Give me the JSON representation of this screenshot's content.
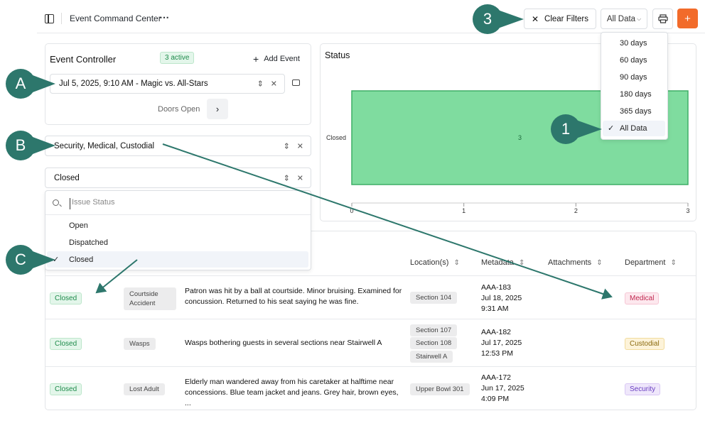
{
  "topbar": {
    "title": "Event Command Center",
    "more": "⋯",
    "clear_filters": "Clear Filters",
    "range_selected": "All Data",
    "add": "+"
  },
  "range_menu": {
    "options": [
      "30 days",
      "60 days",
      "90 days",
      "180 days",
      "365 days",
      "All Data"
    ],
    "selected": "All Data"
  },
  "controller": {
    "title": "Event Controller",
    "active_badge": "3 active",
    "add_event": "Add Event",
    "event_value": "Jul 5, 2025, 9:10 AM - Magic vs. All-Stars",
    "stage": "Doors Open"
  },
  "filters": {
    "departments_value": "Security, Medical, Custodial",
    "status_value": "Closed",
    "status_search_placeholder": "Issue Status",
    "status_options": [
      "Open",
      "Dispatched",
      "Closed"
    ],
    "status_selected": "Closed"
  },
  "status_chart": {
    "title": "Status"
  },
  "chart_data": {
    "type": "bar",
    "orientation": "horizontal",
    "title": "Status",
    "categories": [
      "Closed"
    ],
    "values": [
      3
    ],
    "xlim": [
      0,
      3
    ],
    "xticks": [
      "0",
      "1",
      "2",
      "3"
    ],
    "data_labels": [
      "3"
    ],
    "bar_color": "#7fdc9f",
    "bar_border": "#3fae66"
  },
  "table": {
    "headers": {
      "location": "Location(s)",
      "metadata": "Metadata",
      "attachments": "Attachments",
      "department": "Department"
    },
    "rows": [
      {
        "status": "Closed",
        "type": "Courtside Accident",
        "description": "Patron was hit by a ball at courtside. Minor bruising. Examined for concussion. Returned to his seat saying he was fine.",
        "locations": [
          "Section 104"
        ],
        "id": "AAA-183",
        "date": "Jul 18, 2025",
        "time": "9:31 AM",
        "department": "Medical"
      },
      {
        "status": "Closed",
        "type": "Wasps",
        "description": "Wasps bothering guests in several sections near Stairwell A",
        "locations": [
          "Section 107",
          "Section 108",
          "Stairwell A"
        ],
        "id": "AAA-182",
        "date": "Jul 17, 2025",
        "time": "12:53 PM",
        "department": "Custodial"
      },
      {
        "status": "Closed",
        "type": "Lost Adult",
        "description": "Elderly man wandered away from his caretaker at halftime near concessions. Blue team jacket and jeans. Grey hair, brown eyes, ...",
        "locations": [
          "Upper Bowl 301"
        ],
        "id": "AAA-172",
        "date": "Jun 17, 2025",
        "time": "4:09 PM",
        "department": "Security"
      }
    ]
  },
  "callouts": {
    "one": "1",
    "three": "3",
    "a": "A",
    "b": "B",
    "c": "C"
  },
  "colors": {
    "accent_orange": "#f26b2a",
    "callout_teal": "#2d776c",
    "badge_green_bg": "#e3f6ea",
    "badge_green_text": "#1d8a4a"
  }
}
